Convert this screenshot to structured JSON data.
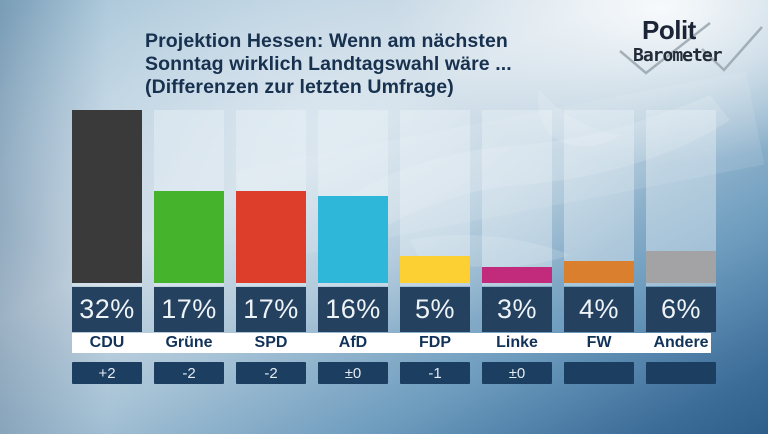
{
  "header": {
    "line1": "Projektion Hessen: Wenn am nächsten",
    "line2": "Sonntag wirklich Landtagswahl wäre ...",
    "line3": "(Differenzen zur letzten Umfrage)"
  },
  "logo": {
    "top": "Polit",
    "bottom": "Barometer"
  },
  "chart_data": {
    "type": "bar",
    "title": "Projektion Hessen: Wenn am nächsten Sonntag wirklich Landtagswahl wäre ...",
    "subtitle": "(Differenzen zur letzten Umfrage)",
    "categories": [
      "CDU",
      "Grüne",
      "SPD",
      "AfD",
      "FDP",
      "Linke",
      "FW",
      "Andere"
    ],
    "values": [
      32,
      17,
      17,
      16,
      5,
      3,
      4,
      6
    ],
    "value_labels": [
      "32%",
      "17%",
      "17%",
      "16%",
      "5%",
      "3%",
      "4%",
      "6%"
    ],
    "diffs": [
      "+2",
      "-2",
      "-2",
      "±0",
      "-1",
      "±0",
      "",
      ""
    ],
    "bar_colors": [
      "#3a3a3a",
      "#45b42c",
      "#dd3e2b",
      "#2fb7da",
      "#fccf33",
      "#c22a7c",
      "#d97f2e",
      "#a3a2a4"
    ],
    "unit": "%",
    "ylim": [
      0,
      32
    ],
    "grid": false,
    "legend": "none"
  },
  "colors": {
    "percent_box": "#24415f",
    "diff_box": "#1c3e61",
    "band": "#ffffff",
    "title_text": "#17314e"
  }
}
